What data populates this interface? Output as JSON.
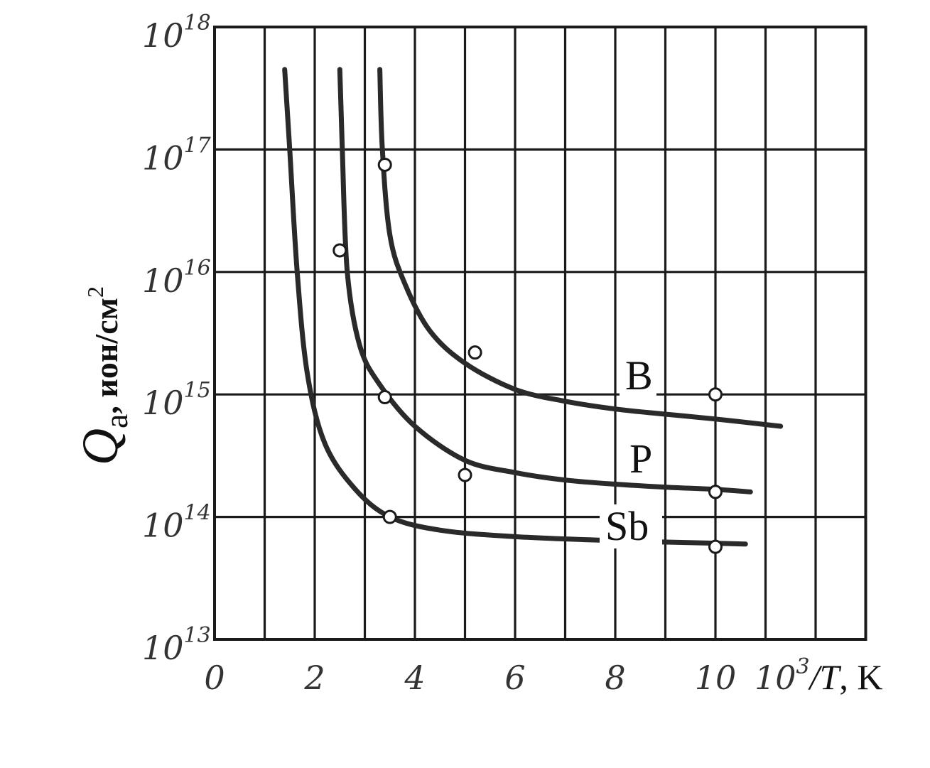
{
  "chart_data": {
    "type": "line",
    "xlabel": {
      "base": "10",
      "exponent": "3",
      "rest": "/T",
      "unit": ", K"
    },
    "ylabel": {
      "symbol": "Q",
      "subscript": "a",
      "unit": ", ион/см",
      "unit_exponent": "2"
    },
    "x_ticks": [
      "0",
      "2",
      "4",
      "6",
      "8",
      "10"
    ],
    "y_ticks": [
      {
        "base": "10",
        "exp": "13",
        "value": 10000000000000.0
      },
      {
        "base": "10",
        "exp": "14",
        "value": 100000000000000.0
      },
      {
        "base": "10",
        "exp": "15",
        "value": 1000000000000000.0
      },
      {
        "base": "10",
        "exp": "16",
        "value": 1e+16
      },
      {
        "base": "10",
        "exp": "17",
        "value": 1e+17
      },
      {
        "base": "10",
        "exp": "18",
        "value": 1e+18
      }
    ],
    "xlim": [
      0,
      13
    ],
    "ylim": [
      10000000000000.0,
      1e+18
    ],
    "y_scale": "log",
    "grid": true,
    "series": [
      {
        "name": "B",
        "curve": [
          [
            3.3,
            4.5e+17
          ],
          [
            3.35,
            1e+17
          ],
          [
            3.5,
            2e+16
          ],
          [
            3.8,
            8000000000000000.0
          ],
          [
            4.3,
            3300000000000000.0
          ],
          [
            5.0,
            1800000000000000.0
          ],
          [
            6.0,
            1100000000000000.0
          ],
          [
            7.0,
            880000000000000.0
          ],
          [
            8.0,
            760000000000000.0
          ],
          [
            9.0,
            690000000000000.0
          ],
          [
            10.0,
            630000000000000.0
          ],
          [
            11.3,
            550000000000000.0
          ]
        ],
        "points": [
          [
            3.4,
            7.5e+16
          ],
          [
            5.2,
            2200000000000000.0
          ],
          [
            10.0,
            1000000000000000.0
          ]
        ]
      },
      {
        "name": "P",
        "curve": [
          [
            2.5,
            4.5e+17
          ],
          [
            2.55,
            1e+17
          ],
          [
            2.65,
            1e+16
          ],
          [
            2.9,
            2500000000000000.0
          ],
          [
            3.3,
            1200000000000000.0
          ],
          [
            4.0,
            550000000000000.0
          ],
          [
            5.0,
            290000000000000.0
          ],
          [
            6.0,
            230000000000000.0
          ],
          [
            7.0,
            200000000000000.0
          ],
          [
            8.0,
            185000000000000.0
          ],
          [
            9.0,
            175000000000000.0
          ],
          [
            10.0,
            168000000000000.0
          ],
          [
            10.7,
            160000000000000.0
          ]
        ],
        "points": [
          [
            2.5,
            1.5e+16
          ],
          [
            3.4,
            950000000000000.0
          ],
          [
            5.0,
            220000000000000.0
          ],
          [
            10.0,
            160000000000000.0
          ]
        ]
      },
      {
        "name": "Sb",
        "curve": [
          [
            1.4,
            4.5e+17
          ],
          [
            1.5,
            1e+17
          ],
          [
            1.65,
            1e+16
          ],
          [
            1.85,
            1500000000000000.0
          ],
          [
            2.2,
            400000000000000.0
          ],
          [
            2.8,
            170000000000000.0
          ],
          [
            3.5,
            100000000000000.0
          ],
          [
            4.5,
            78000000000000.0
          ],
          [
            6.0,
            69000000000000.0
          ],
          [
            8.0,
            64000000000000.0
          ],
          [
            10.0,
            61000000000000.0
          ],
          [
            10.6,
            60000000000000.0
          ]
        ],
        "points": [
          [
            3.5,
            100000000000000.0
          ],
          [
            10.0,
            57000000000000.0
          ]
        ]
      }
    ]
  }
}
